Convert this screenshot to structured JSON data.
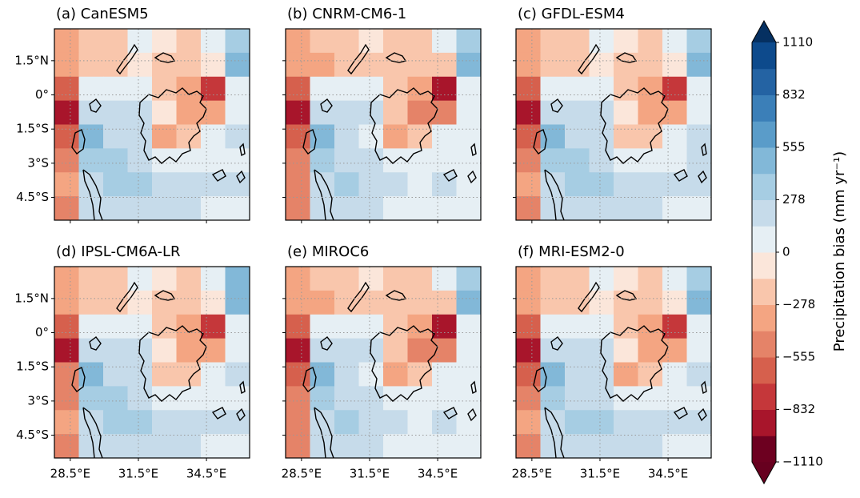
{
  "chart_data": {
    "type": "map",
    "xlim": [
      27.8,
      36.4
    ],
    "ylim": [
      -5.5,
      2.9
    ],
    "xticks": [
      {
        "value": 28.5,
        "label": "28.5°E"
      },
      {
        "value": 31.5,
        "label": "31.5°E"
      },
      {
        "value": 34.5,
        "label": "34.5°E"
      }
    ],
    "yticks": [
      {
        "value": 1.5,
        "label": "1.5°N"
      },
      {
        "value": 0,
        "label": "0°"
      },
      {
        "value": -1.5,
        "label": "1.5°S"
      },
      {
        "value": -3,
        "label": "3°S"
      },
      {
        "value": -4.5,
        "label": "4.5°S"
      }
    ],
    "grid": true,
    "panels": [
      {
        "title": "(a) CanESM5",
        "field": [
          [
            -300,
            -200,
            -150,
            0,
            -100,
            -150,
            100,
            400
          ],
          [
            -300,
            -250,
            -200,
            -100,
            -150,
            -200,
            -100,
            550
          ],
          [
            -600,
            100,
            0,
            100,
            -150,
            -300,
            -800,
            100
          ],
          [
            -900,
            200,
            200,
            200,
            -100,
            -400,
            -400,
            100
          ],
          [
            -600,
            500,
            200,
            150,
            -300,
            -200,
            50,
            150
          ],
          [
            -500,
            400,
            300,
            200,
            100,
            100,
            50,
            100
          ],
          [
            -400,
            200,
            400,
            300,
            200,
            150,
            200,
            150
          ],
          [
            -500,
            200,
            250,
            200,
            150,
            150,
            100,
            100
          ]
        ]
      },
      {
        "title": "(b) CNRM-CM6-1",
        "field": [
          [
            -350,
            -250,
            -200,
            -50,
            -150,
            -200,
            50,
            350
          ],
          [
            -300,
            -300,
            -250,
            -150,
            -200,
            -250,
            -150,
            500
          ],
          [
            -650,
            50,
            0,
            50,
            -200,
            -350,
            -850,
            50
          ],
          [
            -950,
            150,
            150,
            150,
            -150,
            -450,
            -450,
            50
          ],
          [
            -650,
            450,
            150,
            100,
            -350,
            -250,
            0,
            100
          ],
          [
            -550,
            350,
            250,
            150,
            50,
            50,
            0,
            50
          ],
          [
            -450,
            150,
            350,
            250,
            150,
            100,
            150,
            100
          ],
          [
            -550,
            150,
            200,
            150,
            100,
            100,
            50,
            50
          ]
        ]
      },
      {
        "title": "(c) GFDL-ESM4",
        "field": [
          [
            -300,
            -200,
            -150,
            0,
            -100,
            -150,
            100,
            400
          ],
          [
            -300,
            -250,
            -200,
            -100,
            -150,
            -200,
            -100,
            500
          ],
          [
            -600,
            100,
            50,
            100,
            -150,
            -300,
            -750,
            100
          ],
          [
            -900,
            250,
            200,
            200,
            -100,
            -400,
            -350,
            100
          ],
          [
            -600,
            500,
            250,
            150,
            -250,
            -200,
            50,
            150
          ],
          [
            -500,
            400,
            300,
            250,
            100,
            100,
            50,
            150
          ],
          [
            -400,
            250,
            400,
            300,
            200,
            150,
            200,
            150
          ],
          [
            -500,
            200,
            250,
            200,
            150,
            150,
            100,
            100
          ]
        ]
      },
      {
        "title": "(d) IPSL-CM6A-LR",
        "field": [
          [
            -300,
            -200,
            -150,
            0,
            -100,
            -150,
            100,
            450
          ],
          [
            -300,
            -250,
            -200,
            -100,
            -150,
            -200,
            -100,
            550
          ],
          [
            -600,
            100,
            0,
            100,
            -150,
            -300,
            -750,
            100
          ],
          [
            -850,
            250,
            200,
            200,
            -100,
            -350,
            -400,
            100
          ],
          [
            -550,
            550,
            250,
            150,
            -250,
            -200,
            50,
            150
          ],
          [
            -450,
            400,
            300,
            200,
            100,
            100,
            50,
            100
          ],
          [
            -350,
            200,
            400,
            300,
            200,
            150,
            200,
            150
          ],
          [
            -450,
            200,
            250,
            200,
            150,
            150,
            100,
            100
          ]
        ]
      },
      {
        "title": "(e) MIROC6",
        "field": [
          [
            -350,
            -250,
            -200,
            -50,
            -150,
            -200,
            50,
            400
          ],
          [
            -350,
            -300,
            -250,
            -150,
            -200,
            -250,
            -150,
            500
          ],
          [
            -650,
            50,
            0,
            50,
            -200,
            -350,
            -850,
            50
          ],
          [
            -950,
            150,
            150,
            150,
            -150,
            -450,
            -450,
            50
          ],
          [
            -650,
            450,
            150,
            100,
            -350,
            -250,
            0,
            100
          ],
          [
            -550,
            300,
            250,
            150,
            50,
            50,
            0,
            50
          ],
          [
            -450,
            150,
            300,
            250,
            150,
            100,
            150,
            100
          ],
          [
            -550,
            150,
            200,
            150,
            100,
            100,
            50,
            50
          ]
        ]
      },
      {
        "title": "(f) MRI-ESM2-0",
        "field": [
          [
            -300,
            -250,
            -150,
            0,
            -100,
            -150,
            100,
            400
          ],
          [
            -300,
            -250,
            -200,
            -100,
            -150,
            -200,
            -100,
            500
          ],
          [
            -600,
            100,
            0,
            100,
            -150,
            -300,
            -800,
            100
          ],
          [
            -900,
            200,
            150,
            200,
            -100,
            -400,
            -400,
            100
          ],
          [
            -600,
            500,
            200,
            150,
            -300,
            -200,
            50,
            150
          ],
          [
            -500,
            400,
            250,
            200,
            100,
            100,
            50,
            100
          ],
          [
            -400,
            200,
            350,
            300,
            200,
            150,
            200,
            150
          ],
          [
            -500,
            200,
            250,
            200,
            150,
            150,
            100,
            100
          ]
        ]
      }
    ],
    "colorbar": {
      "label": "Precipitation bias (mm yr⁻¹)",
      "clim": [
        -1110,
        1110
      ],
      "colors": [
        "#6d0020",
        "#a8152b",
        "#c5373a",
        "#d6604d",
        "#e58368",
        "#f4a582",
        "#f9c6ac",
        "#fbe6da",
        "#e6eff4",
        "#c6dbea",
        "#a6cde3",
        "#82b8d8",
        "#5a9cc9",
        "#3b7fb8",
        "#2463a3",
        "#0d4a8c"
      ],
      "extend_colors": [
        "#67001f",
        "#053061"
      ],
      "ticks": [
        {
          "value": -1110,
          "label": "−1110"
        },
        {
          "value": -832,
          "label": "−832"
        },
        {
          "value": -555,
          "label": "−555"
        },
        {
          "value": -278,
          "label": "−278"
        },
        0,
        278,
        555,
        832,
        1110
      ]
    }
  }
}
